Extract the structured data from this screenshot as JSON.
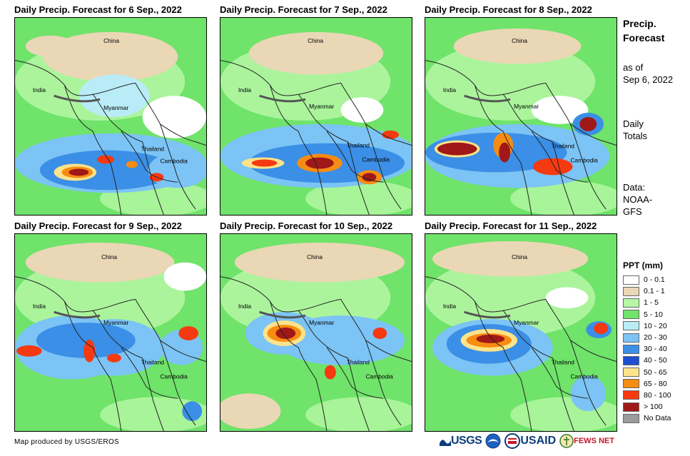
{
  "panels": [
    {
      "title": "Daily Precip. Forecast for 6 Sep., 2022"
    },
    {
      "title": "Daily Precip. Forecast for 7 Sep., 2022"
    },
    {
      "title": "Daily Precip. Forecast for 8 Sep., 2022"
    },
    {
      "title": "Daily Precip. Forecast for 9 Sep., 2022"
    },
    {
      "title": "Daily Precip. Forecast for 10 Sep., 2022"
    },
    {
      "title": "Daily Precip. Forecast for 11 Sep., 2022"
    }
  ],
  "place_labels": {
    "china": "China",
    "india": "India",
    "myanmar": "Myanmar",
    "thailand": "Thailand",
    "cambodia": "Cambodia"
  },
  "side": {
    "title_line1": "Precip.",
    "title_line2": "Forecast",
    "asof_line1": "as of",
    "asof_line2": "Sep 6, 2022",
    "totals_line1": "Daily",
    "totals_line2": "Totals",
    "data_line1": "Data:",
    "data_line2": "NOAA-",
    "data_line3": "GFS"
  },
  "legend": {
    "title": "PPT (mm)",
    "items": [
      {
        "label": "0 - 0.1",
        "color": "#ffffff"
      },
      {
        "label": "0.1 - 1",
        "color": "#e9d7b5"
      },
      {
        "label": "1 - 5",
        "color": "#b6f7a4"
      },
      {
        "label": "5 - 10",
        "color": "#6fe36a"
      },
      {
        "label": "10 - 20",
        "color": "#b9ecf7"
      },
      {
        "label": "20 - 30",
        "color": "#7cc4f5"
      },
      {
        "label": "30 - 40",
        "color": "#3b8fe6"
      },
      {
        "label": "40 - 50",
        "color": "#1f4fd1"
      },
      {
        "label": "50 - 65",
        "color": "#fde38a"
      },
      {
        "label": "65 - 80",
        "color": "#f78c12"
      },
      {
        "label": "80 - 100",
        "color": "#f53a11"
      },
      {
        "label": "> 100",
        "color": "#a01818"
      },
      {
        "label": "No Data",
        "color": "#9c9c9c"
      }
    ]
  },
  "credit": "Map produced by USGS/EROS",
  "logos": {
    "usgs": "USGS",
    "usaid": "USAID",
    "fewsnet": "FEWS NET"
  }
}
